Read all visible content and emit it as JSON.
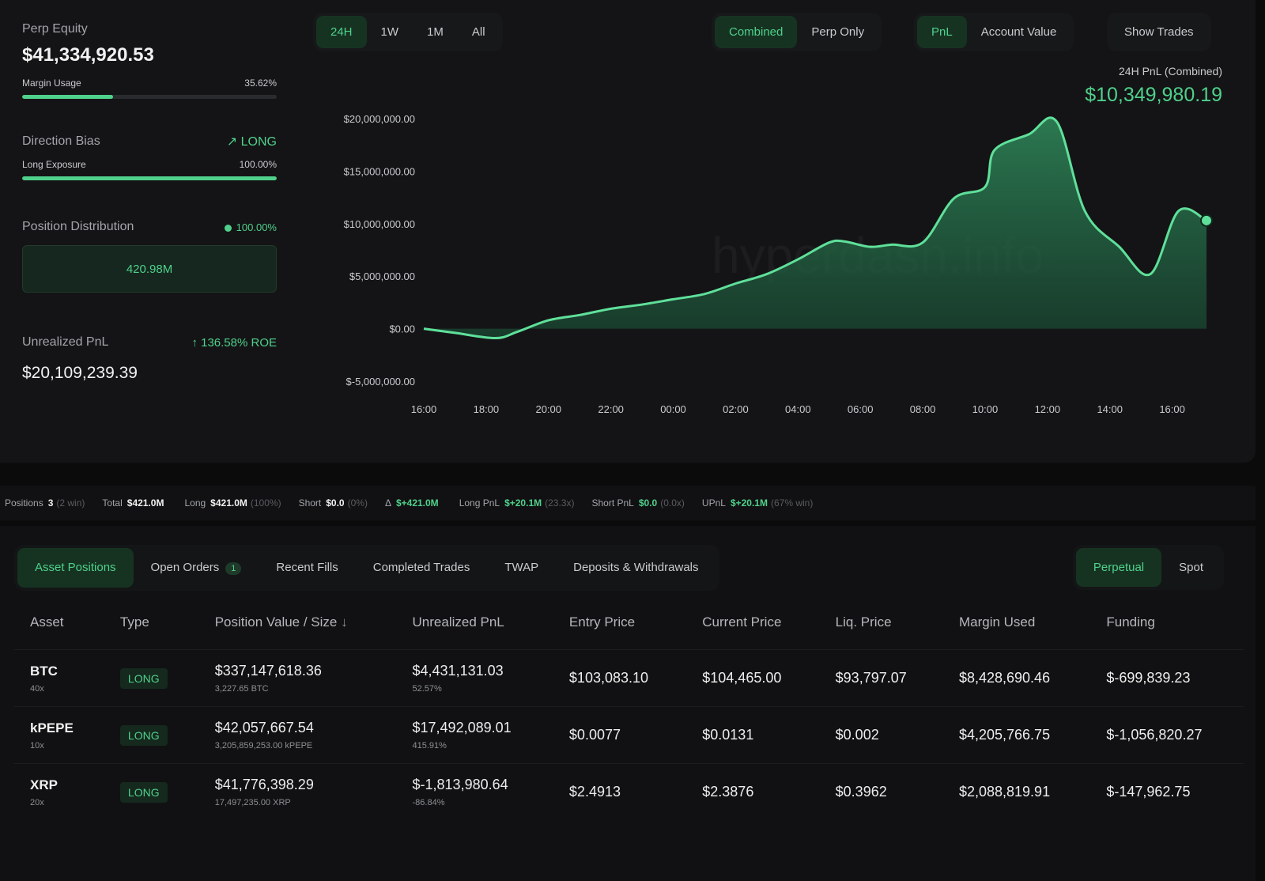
{
  "summary": {
    "perp_equity_label": "Perp Equity",
    "perp_equity_value": "$41,334,920.53",
    "margin_usage_label": "Margin Usage",
    "margin_usage_value": "35.62%",
    "margin_usage_fraction": 0.3562,
    "direction_bias_label": "Direction Bias",
    "direction_bias_value": "LONG",
    "long_exposure_label": "Long Exposure",
    "long_exposure_value": "100.00%",
    "long_exposure_fraction": 1.0,
    "position_distribution_label": "Position Distribution",
    "position_distribution_value": "100.00%",
    "distribution_amount": "420.98M",
    "unrealized_pnl_label": "Unrealized PnL",
    "roe": "136.58% ROE",
    "unrealized_pnl_value": "$20,109,239.39"
  },
  "time_range": {
    "options": [
      "24H",
      "1W",
      "1M",
      "All"
    ],
    "selected": "24H"
  },
  "view_mode": {
    "options": [
      "Combined",
      "Perp Only"
    ],
    "selected": "Combined"
  },
  "metric": {
    "options": [
      "PnL",
      "Account Value"
    ],
    "selected": "PnL"
  },
  "show_trades_label": "Show Trades",
  "pnl_header": {
    "label": "24H PnL (Combined)",
    "value": "$10,349,980.19"
  },
  "chart_data": {
    "type": "area",
    "y_ticks": [
      "$20,000,000.00",
      "$15,000,000.00",
      "$10,000,000.00",
      "$5,000,000.00",
      "$0.00",
      "$-5,000,000.00"
    ],
    "x_ticks": [
      "16:00",
      "18:00",
      "20:00",
      "22:00",
      "00:00",
      "02:00",
      "04:00",
      "06:00",
      "08:00",
      "10:00",
      "12:00",
      "14:00",
      "16:00"
    ],
    "ylim": [
      -5000000,
      20000000
    ],
    "x_hours": [
      0,
      1,
      2.3,
      3,
      4,
      5,
      6,
      7,
      8,
      9,
      10,
      11,
      12,
      13,
      13.5,
      14.3,
      15,
      16,
      17,
      18,
      18.3,
      19.4,
      20.3,
      21.2,
      22.3,
      23.3,
      24.2,
      25.1
    ],
    "values": [
      0,
      -400000,
      -900000,
      -300000,
      800000,
      1300000,
      1900000,
      2300000,
      2800000,
      3300000,
      4300000,
      5200000,
      6600000,
      8200000,
      8300000,
      7800000,
      8000000,
      8200000,
      12400000,
      13500000,
      17000000,
      18500000,
      19700000,
      11200000,
      7800000,
      5200000,
      11200000,
      10300000
    ],
    "grid": false,
    "watermark": "hyperdash.info"
  },
  "stats_bar": [
    {
      "label": "Positions",
      "value": "3",
      "note": "(2 win)",
      "green": false
    },
    {
      "label": "Total",
      "value": "$421.0M",
      "note": "",
      "green": false
    },
    {
      "label": "Long",
      "value": "$421.0M",
      "note": "(100%)",
      "green": false
    },
    {
      "label": "Short",
      "value": "$0.0",
      "note": "(0%)",
      "green": false
    },
    {
      "label": "Δ",
      "value": "$+421.0M",
      "note": "",
      "green": true
    },
    {
      "label": "Long PnL",
      "value": "$+20.1M",
      "note": "(23.3x)",
      "green": true
    },
    {
      "label": "Short PnL",
      "value": "$0.0",
      "note": "(0.0x)",
      "green": true
    },
    {
      "label": "UPnL",
      "value": "$+20.1M",
      "note": "(67% win)",
      "green": true
    }
  ],
  "tabs": [
    {
      "label": "Asset Positions",
      "active": true
    },
    {
      "label": "Open Orders",
      "badge": "1"
    },
    {
      "label": "Recent Fills"
    },
    {
      "label": "Completed Trades"
    },
    {
      "label": "TWAP"
    },
    {
      "label": "Deposits & Withdrawals"
    }
  ],
  "market_tabs": {
    "options": [
      "Perpetual",
      "Spot"
    ],
    "selected": "Perpetual"
  },
  "table": {
    "headers": [
      "Asset",
      "Type",
      "Position Value / Size",
      "Unrealized PnL",
      "Entry Price",
      "Current Price",
      "Liq. Price",
      "Margin Used",
      "Funding"
    ],
    "sort_indicator": "↓",
    "rows": [
      {
        "asset": "BTC",
        "leverage": "40x",
        "type": "LONG",
        "value": "$337,147,618.36",
        "size": "3,227.65 BTC",
        "upnl": "$4,431,131.03",
        "upnl_pct": "52.57%",
        "upnl_positive": true,
        "entry": "$103,083.10",
        "current": "$104,465.00",
        "liq": "$93,797.07",
        "margin": "$8,428,690.46",
        "funding": "$-699,839.23"
      },
      {
        "asset": "kPEPE",
        "leverage": "10x",
        "type": "LONG",
        "value": "$42,057,667.54",
        "size": "3,205,859,253.00 kPEPE",
        "upnl": "$17,492,089.01",
        "upnl_pct": "415.91%",
        "upnl_positive": true,
        "entry": "$0.0077",
        "current": "$0.0131",
        "liq": "$0.002",
        "margin": "$4,205,766.75",
        "funding": "$-1,056,820.27"
      },
      {
        "asset": "XRP",
        "leverage": "20x",
        "type": "LONG",
        "value": "$41,776,398.29",
        "size": "17,497,235.00 XRP",
        "upnl": "$-1,813,980.64",
        "upnl_pct": "-86.84%",
        "upnl_positive": false,
        "entry": "$2.4913",
        "current": "$2.3876",
        "liq": "$0.3962",
        "margin": "$2,088,819.91",
        "funding": "$-147,962.75"
      }
    ]
  },
  "colors": {
    "accent": "#4fd18b",
    "negative": "#e0565b",
    "background": "#0b0b0c"
  }
}
